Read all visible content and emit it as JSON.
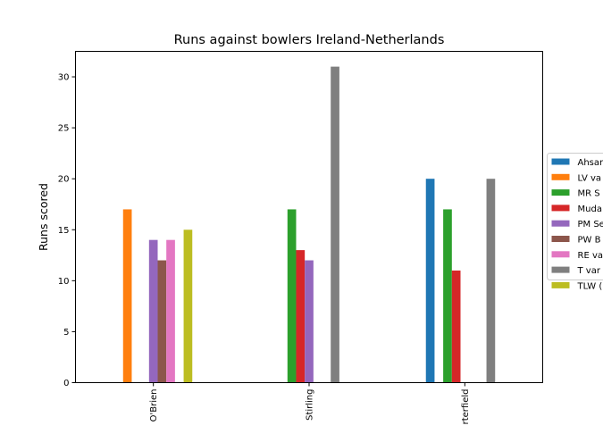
{
  "chart_data": {
    "type": "bar",
    "title": "Runs against bowlers Ireland-Netherlands",
    "xlabel": "",
    "ylabel": "Runs scored",
    "categories": [
      "KJ O'Brien",
      "PR Stirling",
      "WTS Porterfield"
    ],
    "category_labels_visible": [
      "O'Brien",
      "Stirling",
      "rterfield"
    ],
    "ylim": [
      0,
      32.5
    ],
    "yticks": [
      0,
      5,
      10,
      15,
      20,
      25,
      30
    ],
    "grid": false,
    "legend_position": "right",
    "series": [
      {
        "name": "Ahsan Malik",
        "legend_label": "Ahsar",
        "color": "#1f77b4",
        "values": [
          0,
          0,
          20
        ]
      },
      {
        "name": "LV van Beek",
        "legend_label": "LV va",
        "color": "#ff7f0e",
        "values": [
          17,
          0,
          0
        ]
      },
      {
        "name": "MR Swart",
        "legend_label": "MR S",
        "color": "#2ca02c",
        "values": [
          0,
          17,
          17
        ]
      },
      {
        "name": "Mudassar Bukhari",
        "legend_label": "Muda",
        "color": "#d62728",
        "values": [
          0,
          13,
          11
        ]
      },
      {
        "name": "PM Seelaar",
        "legend_label": "PM Se",
        "color": "#9467bd",
        "values": [
          14,
          12,
          0
        ]
      },
      {
        "name": "PW Borren",
        "legend_label": "PW B",
        "color": "#8c564b",
        "values": [
          12,
          0,
          0
        ]
      },
      {
        "name": "RE van der Merwe",
        "legend_label": "RE va",
        "color": "#e377c2",
        "values": [
          14,
          0,
          0
        ]
      },
      {
        "name": "T van der Gugten",
        "legend_label": "T var",
        "color": "#7f7f7f",
        "values": [
          0,
          31,
          20
        ]
      },
      {
        "name": "TLW Cooper",
        "legend_label": "TLW (",
        "color": "#bcbd22",
        "values": [
          15,
          0,
          0
        ]
      }
    ]
  }
}
